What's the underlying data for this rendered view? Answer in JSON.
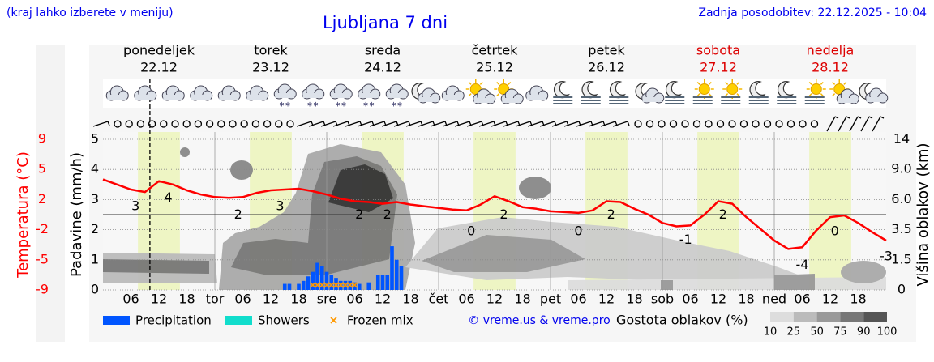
{
  "chart_data": {
    "type": "meteogram",
    "title": "Ljubljana 7 dni",
    "hint": "(kraj lahko izberete v meniju)",
    "updated": "Zadnja posodobitev: 22.12.2025 - 10:04",
    "credit": "© vreme.us & vreme.pro",
    "now_hour": 10.07,
    "days": [
      {
        "name": "ponedeljek",
        "date": "22.12",
        "color": "#000000"
      },
      {
        "name": "torek",
        "date": "23.12",
        "color": "#000000"
      },
      {
        "name": "sreda",
        "date": "24.12",
        "color": "#000000"
      },
      {
        "name": "četrtek",
        "date": "25.12",
        "color": "#000000"
      },
      {
        "name": "petek",
        "date": "26.12",
        "color": "#000000"
      },
      {
        "name": "sobota",
        "date": "27.12",
        "color": "#dd0000"
      },
      {
        "name": "nedelja",
        "date": "28.12",
        "color": "#dd0000"
      }
    ],
    "daylight": [
      7.5,
      16.5
    ],
    "xlim": [
      0,
      168
    ],
    "xticks": [
      {
        "value": 6,
        "label": "06"
      },
      12,
      18,
      {
        "value": 24,
        "label": "tor"
      },
      {
        "value": 30,
        "label": "06"
      },
      {
        "value": 36,
        "label": "12"
      },
      {
        "value": 42,
        "label": "18"
      },
      {
        "value": 48,
        "label": "sre"
      },
      {
        "value": 54,
        "label": "06"
      },
      {
        "value": 60,
        "label": "12"
      },
      {
        "value": 66,
        "label": "18"
      },
      {
        "value": 72,
        "label": "čet"
      },
      {
        "value": 78,
        "label": "06"
      },
      {
        "value": 84,
        "label": "12"
      },
      {
        "value": 90,
        "label": "18"
      },
      {
        "value": 96,
        "label": "pet"
      },
      {
        "value": 102,
        "label": "06"
      },
      {
        "value": 108,
        "label": "12"
      },
      {
        "value": 114,
        "label": "18"
      },
      {
        "value": 120,
        "label": "sob"
      },
      {
        "value": 126,
        "label": "06"
      },
      {
        "value": 132,
        "label": "12"
      },
      {
        "value": 138,
        "label": "18"
      },
      {
        "value": 144,
        "label": "ned"
      },
      {
        "value": 150,
        "label": "06"
      },
      {
        "value": 156,
        "label": "12"
      },
      {
        "value": 162,
        "label": "18"
      }
    ],
    "ylabel": "Padavine (mm/h)",
    "ylim": [
      0,
      5
    ],
    "yticks": [
      0,
      1,
      2,
      3,
      4,
      5
    ],
    "grid": true,
    "temperature": {
      "label": "Temperatura (°C)",
      "color": "#ff0000",
      "ylim": [
        -9,
        9
      ],
      "yticks": [
        -9,
        {
          "value": -5.4,
          "label": "-5"
        },
        {
          "value": -1.8,
          "label": "-2"
        },
        {
          "value": 1.8,
          "label": "2"
        },
        {
          "value": 5.4,
          "label": "5"
        },
        9
      ],
      "freezing": 0,
      "x": [
        0,
        3,
        6,
        9,
        12,
        15,
        18,
        21,
        24,
        27,
        30,
        33,
        36,
        39,
        42,
        45,
        48,
        51,
        54,
        57,
        60,
        63,
        66,
        69,
        72,
        75,
        78,
        81,
        84,
        87,
        90,
        93,
        96,
        99,
        102,
        105,
        108,
        111,
        114,
        117,
        120,
        123,
        126,
        129,
        132,
        135,
        138,
        141,
        144,
        147,
        150,
        153,
        156,
        159,
        162,
        165,
        168
      ],
      "values": [
        4.2,
        3.6,
        3.0,
        2.7,
        4.0,
        3.6,
        2.9,
        2.4,
        2.1,
        2.0,
        2.1,
        2.6,
        2.9,
        3.0,
        3.1,
        2.8,
        2.4,
        1.9,
        1.6,
        1.5,
        1.3,
        1.5,
        1.2,
        1.0,
        0.8,
        0.6,
        0.5,
        1.2,
        2.2,
        1.6,
        0.9,
        0.7,
        0.4,
        0.3,
        0.2,
        0.5,
        1.6,
        1.5,
        0.7,
        0.0,
        -1.0,
        -1.4,
        -1.3,
        0.0,
        1.6,
        1.3,
        -0.3,
        -1.7,
        -3.1,
        -4.1,
        -3.9,
        -1.9,
        -0.3,
        -0.1,
        -1.0,
        -2.1,
        -3.1
      ],
      "extreme_x": [
        7,
        14,
        29,
        38,
        55,
        61,
        79,
        86,
        102,
        109,
        125,
        133,
        150,
        157,
        168
      ],
      "extreme_values": [
        3,
        4,
        2,
        3,
        2,
        2,
        0,
        2,
        0,
        2,
        -1,
        2,
        -4,
        0,
        -3
      ]
    },
    "cloud_height": {
      "label": "Višina oblakov (km)",
      "yticks": [
        0,
        1.5,
        3.5,
        {
          "value": 6,
          "label": "6.0"
        },
        {
          "value": 9,
          "label": "9.0"
        },
        14
      ]
    },
    "series": [
      {
        "name": "Precipitation",
        "color": "#0055ff",
        "x": [
          39,
          40,
          42,
          43,
          44,
          45,
          46,
          47,
          48,
          49,
          50,
          51,
          52,
          53,
          54,
          55,
          57,
          59,
          60,
          61,
          62,
          63,
          64
        ],
        "values": [
          0.2,
          0.2,
          0.2,
          0.3,
          0.45,
          0.6,
          0.9,
          0.8,
          0.6,
          0.5,
          0.4,
          0.3,
          0.3,
          0.3,
          0.25,
          0.2,
          0.25,
          0.5,
          0.5,
          0.5,
          1.45,
          1.0,
          0.8
        ]
      },
      {
        "name": "Showers",
        "color": "#11ddcc",
        "x": [],
        "values": []
      },
      {
        "name": "Frozen mix",
        "color": "#ff9900",
        "x": [
          45,
          46,
          47,
          48,
          49,
          50,
          51,
          52,
          53,
          54
        ]
      }
    ],
    "cloud_legend": {
      "title": "Gostota oblakov (%)",
      "levels": [
        10,
        25,
        50,
        75,
        90,
        100
      ],
      "colors": [
        "#dddddd",
        "#bbbbbb",
        "#999999",
        "#777777",
        "#555555"
      ]
    }
  }
}
